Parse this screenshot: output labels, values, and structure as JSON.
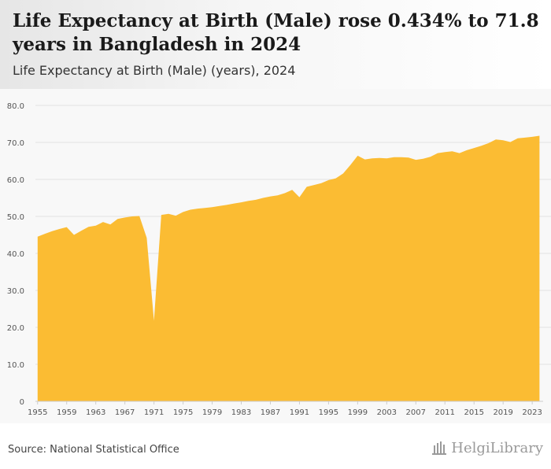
{
  "title": "Life Expectancy at Birth (Male) rose 0.434% to 71.8 years in Bangladesh in 2024",
  "subtitle": "Life Expectancy at Birth (Male) (years), 2024",
  "source": "Source: National Statistical Office",
  "logo_text": "HelgiLibrary",
  "colors": {
    "area": "#fbbc33",
    "grid": "#e2e2e2",
    "axis_text": "#555555"
  },
  "chart_data": {
    "type": "area",
    "title": "Life Expectancy at Birth (Male) (years), 2024",
    "xlabel": "",
    "ylabel": "",
    "ylim": [
      0,
      80
    ],
    "yticks": [
      "0",
      "10.0",
      "20.0",
      "30.0",
      "40.0",
      "50.0",
      "60.0",
      "70.0",
      "80.0"
    ],
    "xticks": [
      "1955",
      "1959",
      "1963",
      "1967",
      "1971",
      "1975",
      "1979",
      "1983",
      "1987",
      "1991",
      "1995",
      "1999",
      "2003",
      "2007",
      "2011",
      "2015",
      "2019",
      "2023"
    ],
    "x": [
      1955,
      1956,
      1957,
      1958,
      1959,
      1960,
      1961,
      1962,
      1963,
      1964,
      1965,
      1966,
      1967,
      1968,
      1969,
      1970,
      1971,
      1972,
      1973,
      1974,
      1975,
      1976,
      1977,
      1978,
      1979,
      1980,
      1981,
      1982,
      1983,
      1984,
      1985,
      1986,
      1987,
      1988,
      1989,
      1990,
      1991,
      1992,
      1993,
      1994,
      1995,
      1996,
      1997,
      1998,
      1999,
      2000,
      2001,
      2002,
      2003,
      2004,
      2005,
      2006,
      2007,
      2008,
      2009,
      2010,
      2011,
      2012,
      2013,
      2014,
      2015,
      2016,
      2017,
      2018,
      2019,
      2020,
      2021,
      2022,
      2023,
      2024
    ],
    "series": [
      {
        "name": "Life Expectancy at Birth (Male)",
        "values": [
          44.5,
          45.3,
          46.0,
          46.6,
          47.1,
          45.0,
          46.1,
          47.2,
          47.5,
          48.5,
          47.8,
          49.3,
          49.7,
          50.0,
          50.1,
          44.2,
          21.8,
          50.4,
          50.7,
          50.2,
          51.2,
          51.8,
          52.1,
          52.3,
          52.5,
          52.8,
          53.1,
          53.5,
          53.8,
          54.2,
          54.5,
          55.0,
          55.4,
          55.7,
          56.3,
          57.2,
          55.2,
          58.0,
          58.5,
          59.0,
          59.8,
          60.3,
          61.6,
          63.9,
          66.4,
          65.4,
          65.7,
          65.8,
          65.7,
          66.0,
          66.0,
          65.9,
          65.3,
          65.6,
          66.1,
          67.1,
          67.4,
          67.6,
          67.1,
          67.9,
          68.5,
          69.1,
          69.8,
          70.8,
          70.6,
          70.1,
          71.1,
          71.3,
          71.5,
          71.8
        ]
      }
    ]
  }
}
